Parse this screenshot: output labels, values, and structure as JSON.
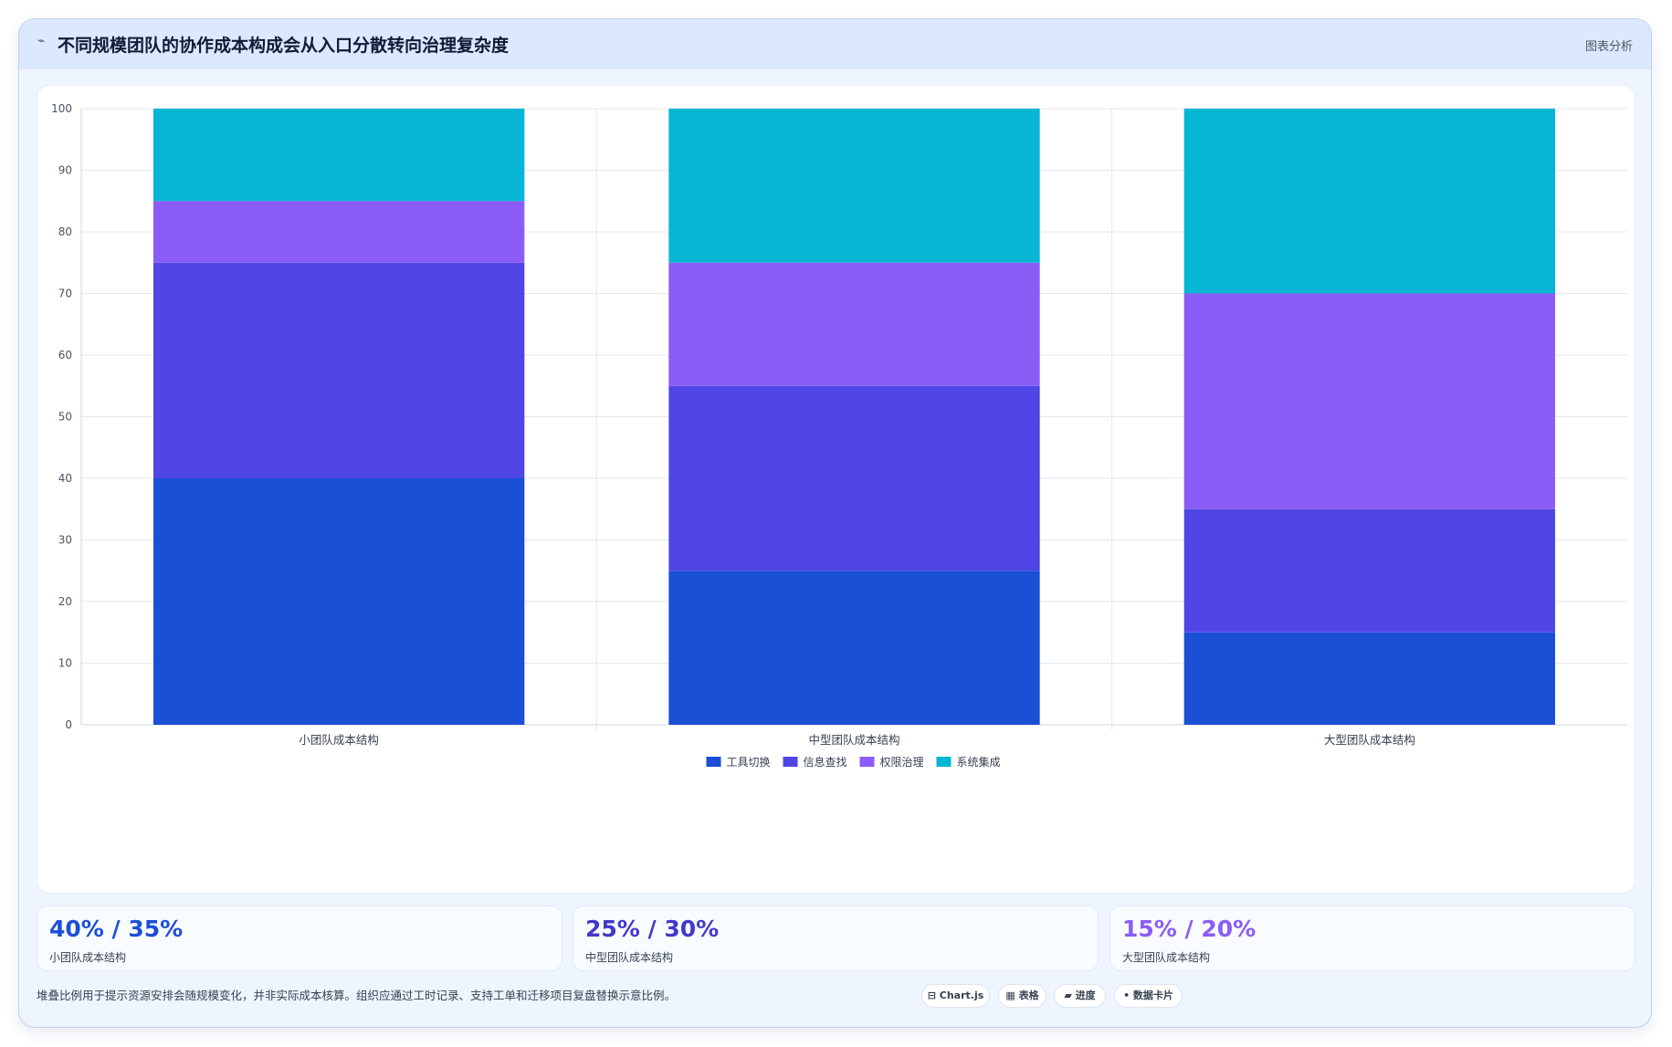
{
  "header": {
    "icon": "chart-icon",
    "title": "不同规模团队的协作成本构成会从入口分散转向治理复杂度",
    "tag": "图表分析"
  },
  "chart_data": {
    "type": "bar",
    "stacked": true,
    "categories": [
      "小团队成本结构",
      "中型团队成本结构",
      "大型团队成本结构"
    ],
    "series": [
      {
        "name": "工具切换",
        "values": [
          40,
          25,
          15
        ],
        "color": "#1a4fd6"
      },
      {
        "name": "信息查找",
        "values": [
          35,
          30,
          20
        ],
        "color": "#4f46e5"
      },
      {
        "name": "权限治理",
        "values": [
          10,
          20,
          35
        ],
        "color": "#8b5cf6"
      },
      {
        "name": "系统集成",
        "values": [
          15,
          25,
          30
        ],
        "color": "#06b6d4"
      }
    ],
    "ylim": [
      0,
      100
    ],
    "yticks": [
      0,
      10,
      20,
      30,
      40,
      50,
      60,
      70,
      80,
      90,
      100
    ],
    "grid": true,
    "legend": "bottom-center"
  },
  "stats": [
    {
      "value": "40% / 35%",
      "label": "小团队成本结构",
      "color": "#1d4ed8"
    },
    {
      "value": "25% / 30%",
      "label": "中型团队成本结构",
      "color": "#4338ca"
    },
    {
      "value": "15% / 20%",
      "label": "大型团队成本结构",
      "color": "#8b5cf6"
    }
  ],
  "footnote": "堆叠比例用于提示资源安排会随规模变化，并非实际成本核算。组织应通过工时记录、支持工单和迁移项目复盘替换示意比例。",
  "chips": [
    {
      "icon": "chart-icon",
      "label": "⊟ Chart.js"
    },
    {
      "icon": "table-icon",
      "label": "▦ 表格"
    },
    {
      "icon": "progress-icon",
      "label": "▰ 进度"
    },
    {
      "icon": "card-icon",
      "label": "• 数据卡片"
    }
  ]
}
